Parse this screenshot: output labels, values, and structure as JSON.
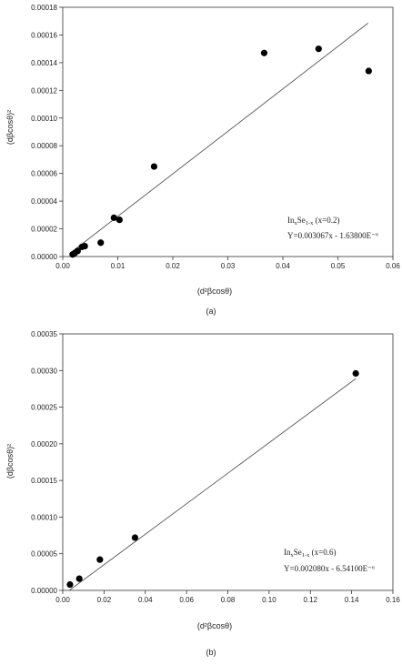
{
  "chart_data": [
    {
      "type": "scatter",
      "panel_label": "(a)",
      "xlabel": "(d²βcosθ)",
      "ylabel": "(dβcosθ)²",
      "xlim": [
        0,
        0.06
      ],
      "ylim": [
        0,
        0.00018
      ],
      "xticks": [
        "0.00",
        "0.01",
        "0.02",
        "0.03",
        "0.04",
        "0.05",
        "0.06"
      ],
      "yticks": [
        "0.00000",
        "0.00002",
        "0.00004",
        "0.00006",
        "0.00008",
        "0.00010",
        "0.00012",
        "0.00014",
        "0.00016",
        "0.00018"
      ],
      "points": [
        {
          "x": 0.0018,
          "y": 1.5e-06
        },
        {
          "x": 0.0022,
          "y": 2.5e-06
        },
        {
          "x": 0.0027,
          "y": 4e-06
        },
        {
          "x": 0.0035,
          "y": 7e-06
        },
        {
          "x": 0.004,
          "y": 7.5e-06
        },
        {
          "x": 0.0069,
          "y": 1e-05
        },
        {
          "x": 0.0093,
          "y": 2.8e-05
        },
        {
          "x": 0.0103,
          "y": 2.65e-05
        },
        {
          "x": 0.0166,
          "y": 6.5e-05
        },
        {
          "x": 0.0366,
          "y": 0.000147
        },
        {
          "x": 0.0465,
          "y": 0.00015
        },
        {
          "x": 0.0556,
          "y": 0.000134
        }
      ],
      "fit": {
        "slope": 0.003067,
        "intercept": -1.638e-06,
        "x_range": [
          0.0015,
          0.0555
        ]
      },
      "annotation": {
        "formula_prefix": "In",
        "formula_sub1": "x",
        "formula_mid": "Se",
        "formula_sub2": "1-x",
        "formula_suffix": " (x=0.2)",
        "equation": "Y=0.003067x - 1.63800E⁻⁶"
      }
    },
    {
      "type": "scatter",
      "panel_label": "(b)",
      "xlabel": "(d²βcosθ)",
      "ylabel": "(dβcosθ)²",
      "xlim": [
        0,
        0.16
      ],
      "ylim": [
        0,
        0.00035
      ],
      "xticks": [
        "0.00",
        "0.02",
        "0.04",
        "0.06",
        "0.08",
        "0.10",
        "0.12",
        "0.14",
        "0.16"
      ],
      "yticks": [
        "0.00000",
        "0.00005",
        "0.00010",
        "0.00015",
        "0.00020",
        "0.00025",
        "0.00030",
        "0.00035"
      ],
      "points": [
        {
          "x": 0.0035,
          "y": 8e-06
        },
        {
          "x": 0.008,
          "y": 1.6e-05
        },
        {
          "x": 0.018,
          "y": 4.2e-05
        },
        {
          "x": 0.035,
          "y": 7.2e-05
        },
        {
          "x": 0.142,
          "y": 0.000296
        }
      ],
      "fit": {
        "slope": 0.00208,
        "intercept": -6.54e-06,
        "x_range": [
          0.0032,
          0.142
        ]
      },
      "annotation": {
        "formula_prefix": "In",
        "formula_sub1": "x",
        "formula_mid": "Se",
        "formula_sub2": "1-x",
        "formula_suffix": " (x=0.6)",
        "equation": "Y=0.002080x - 6.54100E⁻⁶"
      }
    }
  ]
}
